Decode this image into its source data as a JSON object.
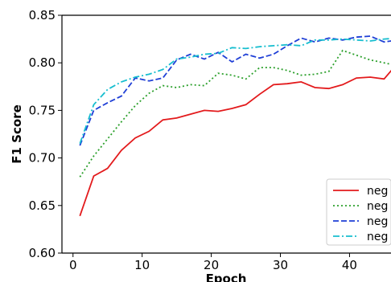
{
  "chart_data": {
    "type": "line",
    "title": "",
    "xlabel": "Epoch",
    "ylabel": "F1 Score",
    "xlim": [
      -1.6,
      46
    ],
    "ylim": [
      0.6,
      0.85
    ],
    "xticks": [
      0,
      10,
      20,
      30,
      40
    ],
    "yticks": [
      0.6,
      0.65,
      0.7,
      0.75,
      0.8,
      0.85
    ],
    "ytick_labels": [
      "0.60",
      "0.65",
      "0.70",
      "0.75",
      "0.80",
      "0.85"
    ],
    "grid": false,
    "legend": "right",
    "x": [
      1,
      3,
      5,
      7,
      9,
      11,
      13,
      15,
      17,
      19,
      21,
      23,
      25,
      27,
      29,
      31,
      33,
      35,
      37,
      39,
      41,
      43,
      45,
      47
    ],
    "series": [
      {
        "name": "neg",
        "color": "#e31a1c",
        "dash": "solid",
        "values": [
          0.639,
          0.681,
          0.689,
          0.708,
          0.721,
          0.728,
          0.74,
          0.742,
          0.746,
          0.75,
          0.749,
          0.752,
          0.756,
          0.767,
          0.777,
          0.778,
          0.78,
          0.774,
          0.773,
          0.777,
          0.784,
          0.785,
          0.783,
          0.8
        ]
      },
      {
        "name": "neg",
        "color": "#2ca02c",
        "dash": "dotted",
        "values": [
          0.68,
          0.702,
          0.72,
          0.738,
          0.755,
          0.768,
          0.776,
          0.774,
          0.777,
          0.776,
          0.789,
          0.787,
          0.783,
          0.795,
          0.795,
          0.792,
          0.787,
          0.788,
          0.791,
          0.813,
          0.808,
          0.803,
          0.8,
          0.797
        ]
      },
      {
        "name": "neg",
        "color": "#1f3fd6",
        "dash": "dashed",
        "values": [
          0.713,
          0.75,
          0.758,
          0.765,
          0.784,
          0.781,
          0.784,
          0.803,
          0.809,
          0.804,
          0.811,
          0.801,
          0.809,
          0.805,
          0.809,
          0.818,
          0.826,
          0.822,
          0.826,
          0.824,
          0.827,
          0.828,
          0.822,
          0.824
        ]
      },
      {
        "name": "neg",
        "color": "#17becf",
        "dash": "dashdot",
        "values": [
          0.715,
          0.756,
          0.772,
          0.78,
          0.785,
          0.788,
          0.793,
          0.804,
          0.806,
          0.809,
          0.81,
          0.816,
          0.815,
          0.817,
          0.818,
          0.819,
          0.818,
          0.824,
          0.824,
          0.825,
          0.824,
          0.823,
          0.825,
          0.826
        ]
      }
    ]
  }
}
